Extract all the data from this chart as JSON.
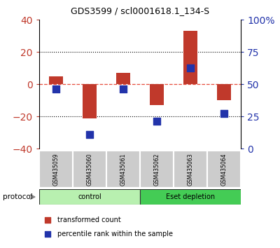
{
  "title": "GDS3599 / scl0001618.1_134-S",
  "categories": [
    "GSM435059",
    "GSM435060",
    "GSM435061",
    "GSM435062",
    "GSM435063",
    "GSM435064"
  ],
  "red_bars": [
    5,
    -21,
    7,
    -13,
    33,
    -10
  ],
  "blue_dots_left": [
    -3,
    -31,
    -3,
    -23,
    10,
    -18
  ],
  "ylim_left": [
    -40,
    40
  ],
  "ylim_right": [
    0,
    100
  ],
  "yticks_left": [
    -40,
    -20,
    0,
    20,
    40
  ],
  "yticks_right": [
    0,
    25,
    50,
    75,
    100
  ],
  "ytick_labels_right": [
    "0",
    "25",
    "50",
    "75",
    "100%"
  ],
  "bar_color": "#c0392b",
  "dot_color": "#2233aa",
  "zero_line_color": "#e74c3c",
  "grid_color": "#000000",
  "bg_color": "#ffffff",
  "protocol_groups": [
    {
      "label": "control",
      "start": 0,
      "end": 3,
      "color": "#b8f0b0"
    },
    {
      "label": "Eset depletion",
      "start": 3,
      "end": 6,
      "color": "#44cc55"
    }
  ],
  "protocol_label": "protocol",
  "legend_items": [
    {
      "label": "transformed count",
      "color": "#c0392b"
    },
    {
      "label": "percentile rank within the sample",
      "color": "#2233aa"
    }
  ],
  "bar_width": 0.4,
  "dot_size": 45,
  "figsize": [
    4.0,
    3.54
  ],
  "dpi": 100
}
